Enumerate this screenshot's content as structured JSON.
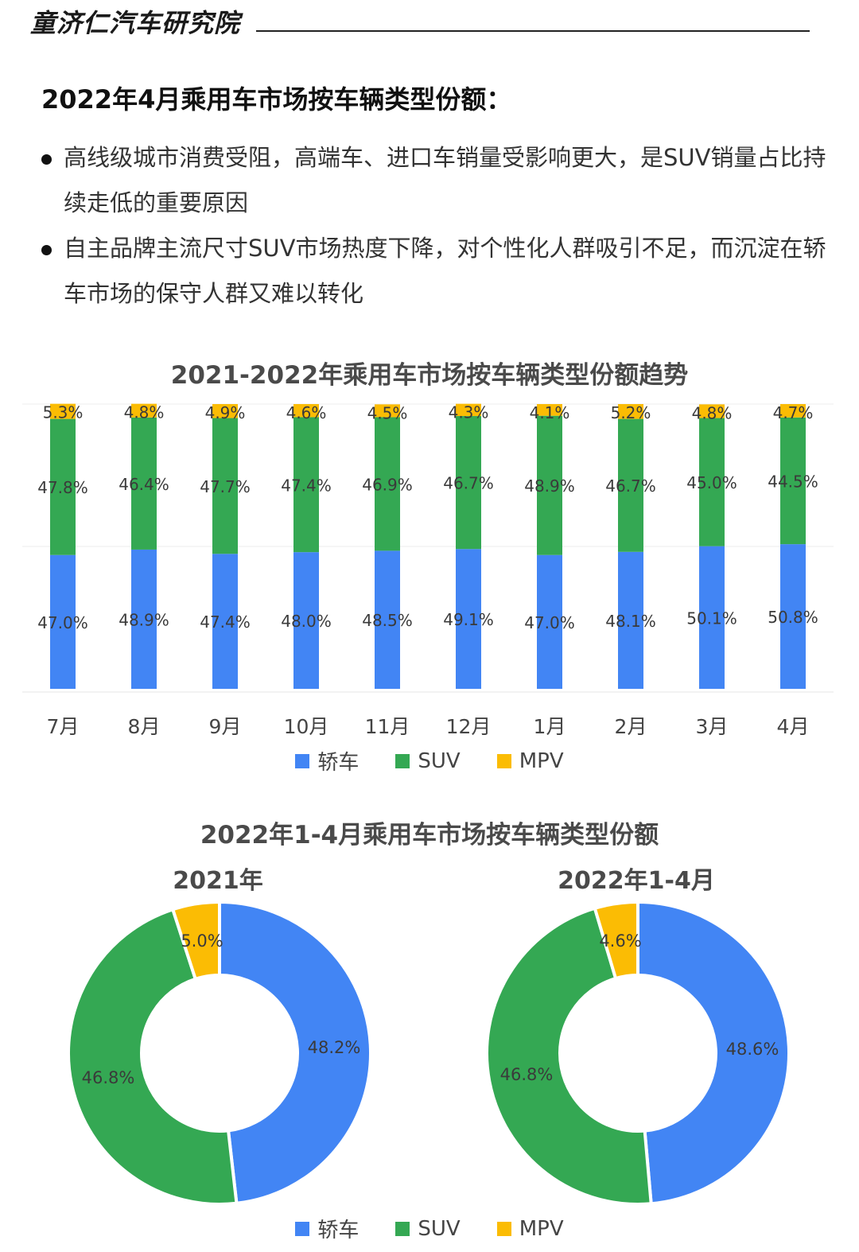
{
  "header": {
    "brand": "童济仁汽车研究院"
  },
  "headline": "2022年4月乘用车市场按车辆类型份额：",
  "bullets": [
    "高线级城市消费受阻，高端车、进口车销量受影响更大，是SUV销量占比持续走低的重要原因",
    "自主品牌主流尺寸SUV市场热度下降，对个性化人群吸引不足，而沉淀在轿车市场的保守人群又难以转化"
  ],
  "colors": {
    "sedan": "#4285F4",
    "suv": "#34A853",
    "mpv": "#FBBC04"
  },
  "legend": [
    "轿车",
    "SUV",
    "MPV"
  ],
  "chart_data": [
    {
      "type": "bar",
      "stacked": true,
      "title": "2021-2022年乘用车市场按车辆类型份额趋势",
      "categories": [
        "7月",
        "8月",
        "9月",
        "10月",
        "11月",
        "12月",
        "1月",
        "2月",
        "3月",
        "4月"
      ],
      "series": [
        {
          "name": "轿车",
          "values": [
            47.0,
            48.9,
            47.4,
            48.0,
            48.5,
            49.1,
            47.0,
            48.1,
            50.1,
            50.8
          ],
          "labels": [
            "47.0%",
            "48.9%",
            "47.4%",
            "48.0%",
            "48.5%",
            "49.1%",
            "47.0%",
            "48.1%",
            "50.1%",
            "50.8%"
          ]
        },
        {
          "name": "SUV",
          "values": [
            47.8,
            46.4,
            47.7,
            47.4,
            46.9,
            46.7,
            48.9,
            46.7,
            45.0,
            44.5
          ],
          "labels": [
            "47.8%",
            "46.4%",
            "47.7%",
            "47.4%",
            "46.9%",
            "46.7%",
            "48.9%",
            "46.7%",
            "45.0%",
            "44.5%"
          ]
        },
        {
          "name": "MPV",
          "values": [
            5.3,
            4.8,
            4.9,
            4.6,
            4.5,
            4.3,
            4.1,
            5.2,
            4.8,
            4.7
          ],
          "labels": [
            "5.3%",
            "4.8%",
            "4.9%",
            "4.6%",
            "4.5%",
            "4.3%",
            "4.1%",
            "5.2%",
            "4.8%",
            "4.7%"
          ]
        }
      ],
      "ylim": [
        0,
        100
      ],
      "legend_position": "bottom"
    },
    {
      "type": "pie",
      "title": "2022年1-4月乘用车市场按车辆类型份额",
      "subtitle": "2021年",
      "donut": true,
      "slices": [
        {
          "name": "轿车",
          "value": 48.2,
          "label": "48.2%"
        },
        {
          "name": "SUV",
          "value": 46.8,
          "label": "46.8%"
        },
        {
          "name": "MPV",
          "value": 5.0,
          "label": "5.0%"
        }
      ],
      "legend_position": "bottom"
    },
    {
      "type": "pie",
      "subtitle": "2022年1-4月",
      "donut": true,
      "slices": [
        {
          "name": "轿车",
          "value": 48.6,
          "label": "48.6%"
        },
        {
          "name": "SUV",
          "value": 46.8,
          "label": "46.8%"
        },
        {
          "name": "MPV",
          "value": 4.6,
          "label": "4.6%"
        }
      ],
      "legend_position": "bottom"
    }
  ]
}
